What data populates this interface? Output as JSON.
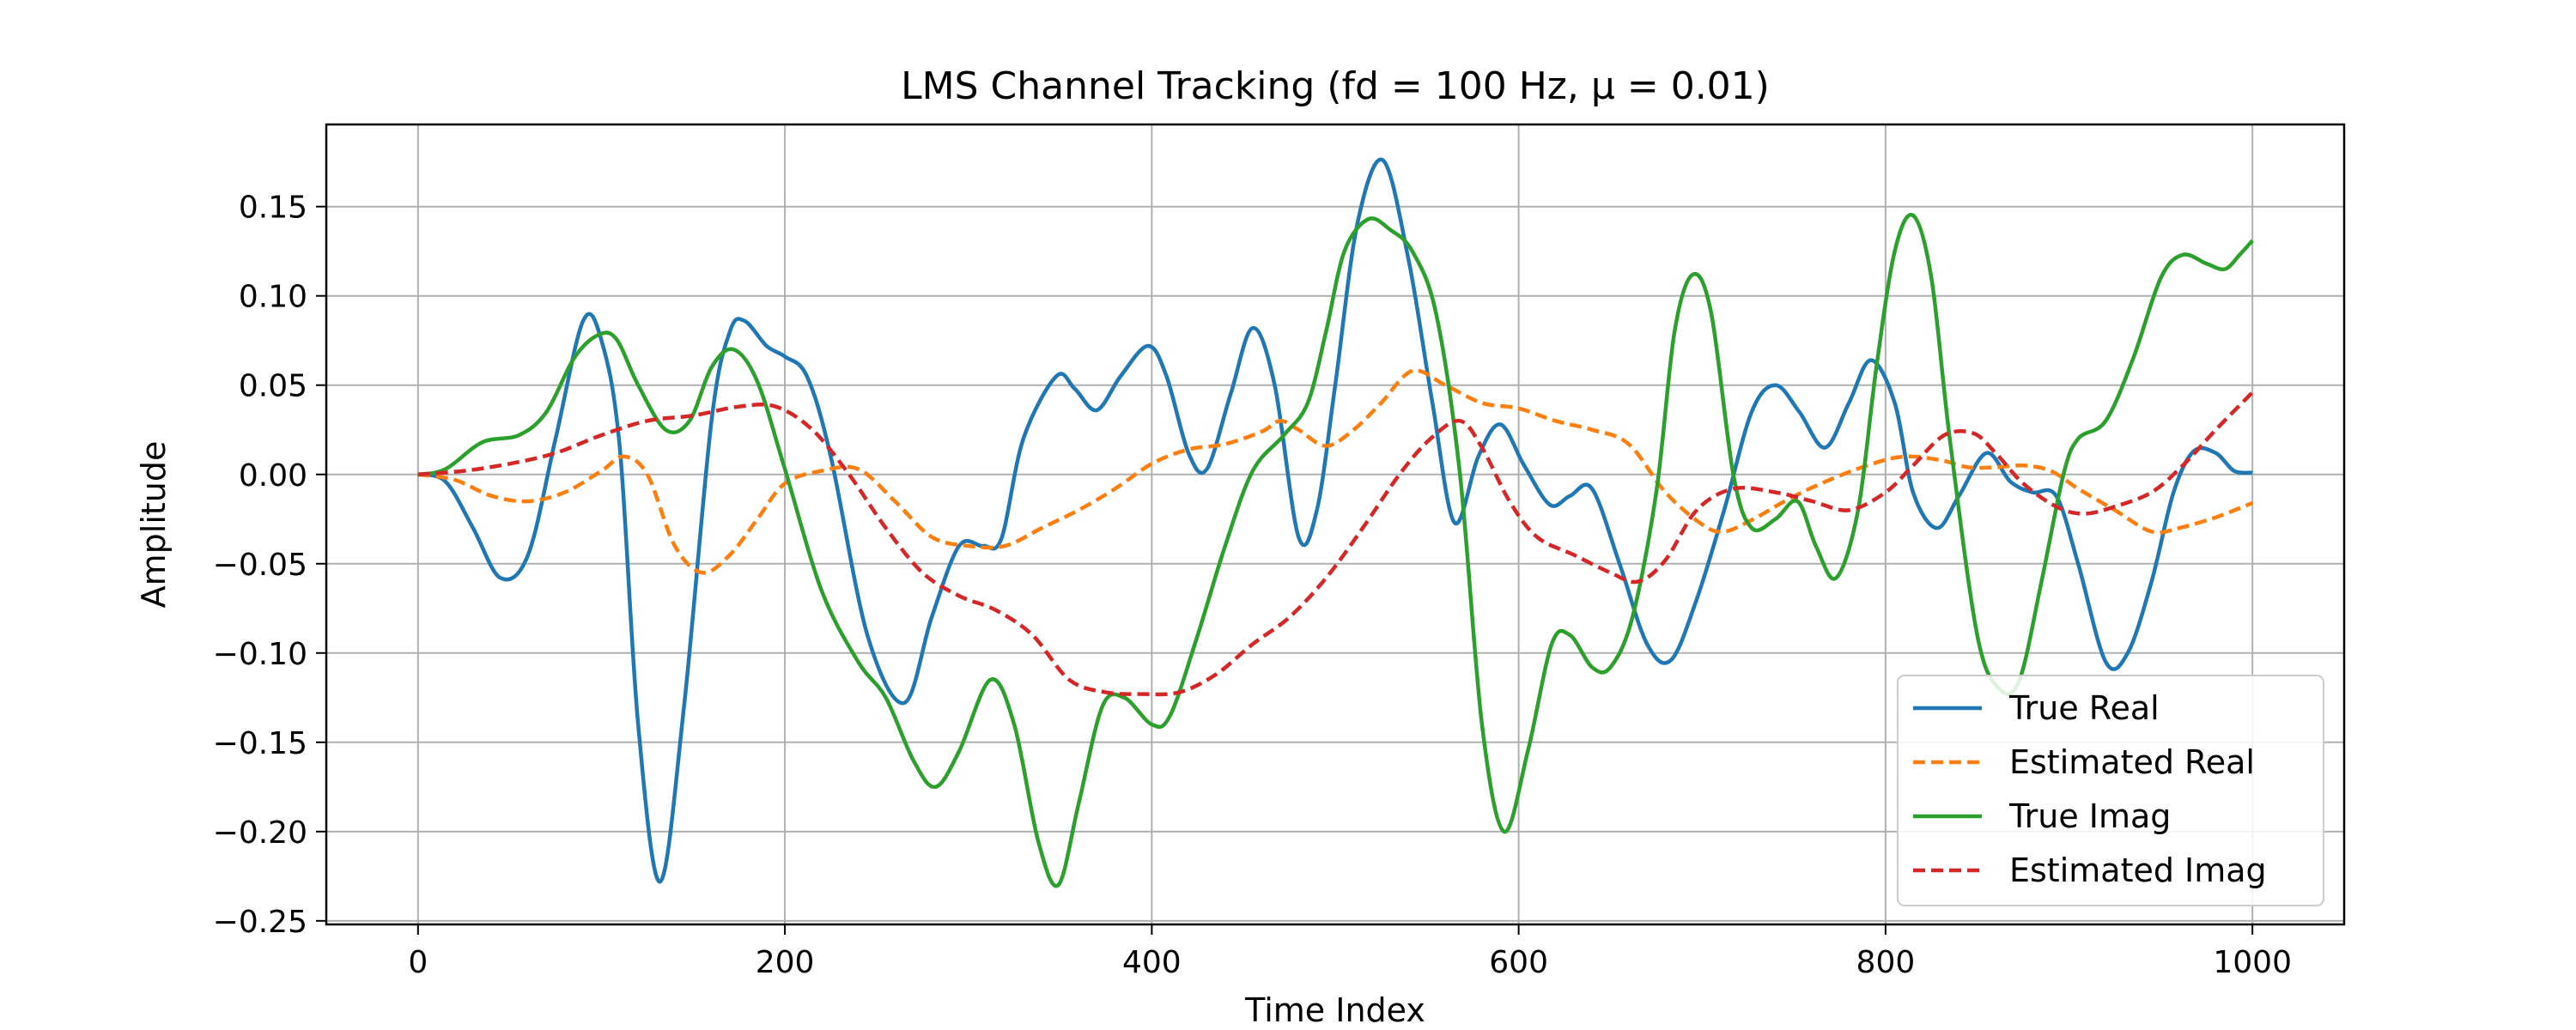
{
  "chart_data": {
    "type": "line",
    "title": "LMS Channel Tracking (fd = 100 Hz, μ = 0.01)",
    "xlabel": "Time Index",
    "ylabel": "Amplitude",
    "xlim": [
      -50,
      1050
    ],
    "ylim": [
      -0.252,
      0.196
    ],
    "xticks": [
      0,
      200,
      400,
      600,
      800,
      1000
    ],
    "xtick_labels": [
      "0",
      "200",
      "400",
      "600",
      "800",
      "1000"
    ],
    "yticks": [
      -0.25,
      -0.2,
      -0.15,
      -0.1,
      -0.05,
      0.0,
      0.05,
      0.1,
      0.15
    ],
    "ytick_labels": [
      "−0.25",
      "−0.20",
      "−0.15",
      "−0.10",
      "−0.05",
      "0.00",
      "0.05",
      "0.10",
      "0.15"
    ],
    "grid": true,
    "legend_position": "lower-right",
    "series": [
      {
        "name": "True Real",
        "color": "#1f77b4",
        "dash": "solid",
        "points": [
          [
            0,
            0
          ],
          [
            15,
            -0.004
          ],
          [
            30,
            -0.03
          ],
          [
            45,
            -0.058
          ],
          [
            60,
            -0.045
          ],
          [
            75,
            0.02
          ],
          [
            90,
            0.086
          ],
          [
            100,
            0.075
          ],
          [
            110,
            0.015
          ],
          [
            120,
            -0.14
          ],
          [
            132,
            -0.228
          ],
          [
            145,
            -0.13
          ],
          [
            160,
            0.03
          ],
          [
            170,
            0.08
          ],
          [
            178,
            0.086
          ],
          [
            190,
            0.072
          ],
          [
            200,
            0.066
          ],
          [
            212,
            0.055
          ],
          [
            225,
            0.01
          ],
          [
            245,
            -0.09
          ],
          [
            265,
            -0.128
          ],
          [
            280,
            -0.08
          ],
          [
            295,
            -0.04
          ],
          [
            308,
            -0.04
          ],
          [
            318,
            -0.036
          ],
          [
            330,
            0.02
          ],
          [
            348,
            0.055
          ],
          [
            358,
            0.048
          ],
          [
            370,
            0.036
          ],
          [
            383,
            0.055
          ],
          [
            398,
            0.072
          ],
          [
            408,
            0.055
          ],
          [
            420,
            0.012
          ],
          [
            430,
            0.003
          ],
          [
            443,
            0.045
          ],
          [
            455,
            0.082
          ],
          [
            467,
            0.05
          ],
          [
            480,
            -0.035
          ],
          [
            490,
            -0.02
          ],
          [
            500,
            0.05
          ],
          [
            512,
            0.14
          ],
          [
            526,
            0.176
          ],
          [
            540,
            0.12
          ],
          [
            553,
            0.04
          ],
          [
            565,
            -0.027
          ],
          [
            578,
            0.01
          ],
          [
            590,
            0.028
          ],
          [
            603,
            0.005
          ],
          [
            617,
            -0.017
          ],
          [
            628,
            -0.012
          ],
          [
            640,
            -0.008
          ],
          [
            655,
            -0.05
          ],
          [
            670,
            -0.095
          ],
          [
            683,
            -0.104
          ],
          [
            697,
            -0.07
          ],
          [
            712,
            -0.02
          ],
          [
            727,
            0.035
          ],
          [
            740,
            0.05
          ],
          [
            753,
            0.035
          ],
          [
            767,
            0.015
          ],
          [
            780,
            0.04
          ],
          [
            792,
            0.064
          ],
          [
            805,
            0.04
          ],
          [
            815,
            -0.01
          ],
          [
            828,
            -0.03
          ],
          [
            840,
            -0.012
          ],
          [
            855,
            0.012
          ],
          [
            868,
            -0.004
          ],
          [
            880,
            -0.01
          ],
          [
            893,
            -0.012
          ],
          [
            905,
            -0.05
          ],
          [
            920,
            -0.105
          ],
          [
            932,
            -0.1
          ],
          [
            945,
            -0.06
          ],
          [
            957,
            -0.01
          ],
          [
            968,
            0.013
          ],
          [
            980,
            0.012
          ],
          [
            990,
            0.002
          ],
          [
            1000,
            0.001
          ]
        ]
      },
      {
        "name": "Estimated Real",
        "color": "#ff7f0e",
        "dash": "dashed",
        "points": [
          [
            0,
            0
          ],
          [
            20,
            -0.003
          ],
          [
            40,
            -0.012
          ],
          [
            60,
            -0.015
          ],
          [
            80,
            -0.01
          ],
          [
            100,
            0.002
          ],
          [
            112,
            0.01
          ],
          [
            125,
            0.0
          ],
          [
            140,
            -0.04
          ],
          [
            155,
            -0.055
          ],
          [
            170,
            -0.045
          ],
          [
            185,
            -0.025
          ],
          [
            200,
            -0.005
          ],
          [
            220,
            0.002
          ],
          [
            240,
            0.003
          ],
          [
            260,
            -0.015
          ],
          [
            280,
            -0.035
          ],
          [
            300,
            -0.04
          ],
          [
            320,
            -0.04
          ],
          [
            340,
            -0.03
          ],
          [
            360,
            -0.02
          ],
          [
            380,
            -0.008
          ],
          [
            400,
            0.006
          ],
          [
            420,
            0.014
          ],
          [
            440,
            0.017
          ],
          [
            460,
            0.024
          ],
          [
            470,
            0.03
          ],
          [
            480,
            0.025
          ],
          [
            495,
            0.016
          ],
          [
            510,
            0.025
          ],
          [
            525,
            0.04
          ],
          [
            542,
            0.058
          ],
          [
            560,
            0.05
          ],
          [
            580,
            0.04
          ],
          [
            600,
            0.037
          ],
          [
            620,
            0.03
          ],
          [
            640,
            0.025
          ],
          [
            660,
            0.017
          ],
          [
            680,
            -0.01
          ],
          [
            700,
            -0.028
          ],
          [
            712,
            -0.032
          ],
          [
            728,
            -0.025
          ],
          [
            745,
            -0.015
          ],
          [
            765,
            -0.005
          ],
          [
            790,
            0.005
          ],
          [
            810,
            0.01
          ],
          [
            830,
            0.008
          ],
          [
            845,
            0.004
          ],
          [
            860,
            0.004
          ],
          [
            875,
            0.005
          ],
          [
            890,
            0.002
          ],
          [
            905,
            -0.008
          ],
          [
            925,
            -0.02
          ],
          [
            945,
            -0.032
          ],
          [
            960,
            -0.03
          ],
          [
            980,
            -0.024
          ],
          [
            1000,
            -0.016
          ]
        ]
      },
      {
        "name": "True Imag",
        "color": "#2ca02c",
        "dash": "solid",
        "points": [
          [
            0,
            0
          ],
          [
            15,
            0.003
          ],
          [
            35,
            0.018
          ],
          [
            55,
            0.022
          ],
          [
            70,
            0.035
          ],
          [
            85,
            0.065
          ],
          [
            98,
            0.078
          ],
          [
            108,
            0.076
          ],
          [
            120,
            0.05
          ],
          [
            135,
            0.025
          ],
          [
            148,
            0.03
          ],
          [
            160,
            0.06
          ],
          [
            172,
            0.07
          ],
          [
            185,
            0.052
          ],
          [
            200,
            0.003
          ],
          [
            220,
            -0.065
          ],
          [
            240,
            -0.105
          ],
          [
            255,
            -0.125
          ],
          [
            270,
            -0.16
          ],
          [
            282,
            -0.175
          ],
          [
            295,
            -0.155
          ],
          [
            312,
            -0.115
          ],
          [
            325,
            -0.14
          ],
          [
            338,
            -0.205
          ],
          [
            349,
            -0.23
          ],
          [
            360,
            -0.185
          ],
          [
            373,
            -0.13
          ],
          [
            385,
            -0.125
          ],
          [
            400,
            -0.14
          ],
          [
            410,
            -0.135
          ],
          [
            425,
            -0.09
          ],
          [
            440,
            -0.04
          ],
          [
            455,
            0.002
          ],
          [
            472,
            0.022
          ],
          [
            485,
            0.04
          ],
          [
            495,
            0.08
          ],
          [
            505,
            0.125
          ],
          [
            518,
            0.143
          ],
          [
            530,
            0.137
          ],
          [
            542,
            0.125
          ],
          [
            555,
            0.09
          ],
          [
            568,
            0.0
          ],
          [
            580,
            -0.14
          ],
          [
            592,
            -0.2
          ],
          [
            605,
            -0.155
          ],
          [
            618,
            -0.095
          ],
          [
            628,
            -0.09
          ],
          [
            640,
            -0.108
          ],
          [
            650,
            -0.108
          ],
          [
            662,
            -0.08
          ],
          [
            675,
            -0.01
          ],
          [
            685,
            0.08
          ],
          [
            695,
            0.112
          ],
          [
            705,
            0.09
          ],
          [
            717,
            0.0
          ],
          [
            727,
            -0.03
          ],
          [
            740,
            -0.025
          ],
          [
            752,
            -0.015
          ],
          [
            762,
            -0.04
          ],
          [
            773,
            -0.058
          ],
          [
            785,
            -0.02
          ],
          [
            795,
            0.06
          ],
          [
            805,
            0.125
          ],
          [
            815,
            0.145
          ],
          [
            825,
            0.11
          ],
          [
            835,
            0.02
          ],
          [
            850,
            -0.09
          ],
          [
            862,
            -0.12
          ],
          [
            873,
            -0.115
          ],
          [
            885,
            -0.06
          ],
          [
            897,
            0.0
          ],
          [
            905,
            0.02
          ],
          [
            920,
            0.03
          ],
          [
            935,
            0.065
          ],
          [
            950,
            0.11
          ],
          [
            962,
            0.123
          ],
          [
            975,
            0.118
          ],
          [
            985,
            0.115
          ],
          [
            993,
            0.123
          ],
          [
            1000,
            0.131
          ]
        ]
      },
      {
        "name": "Estimated Imag",
        "color": "#d62728",
        "dash": "dashed",
        "points": [
          [
            0,
            0
          ],
          [
            25,
            0.002
          ],
          [
            50,
            0.006
          ],
          [
            75,
            0.012
          ],
          [
            100,
            0.022
          ],
          [
            125,
            0.03
          ],
          [
            150,
            0.033
          ],
          [
            175,
            0.038
          ],
          [
            195,
            0.038
          ],
          [
            215,
            0.025
          ],
          [
            235,
            0.0
          ],
          [
            255,
            -0.03
          ],
          [
            275,
            -0.055
          ],
          [
            295,
            -0.068
          ],
          [
            315,
            -0.076
          ],
          [
            335,
            -0.09
          ],
          [
            355,
            -0.115
          ],
          [
            375,
            -0.122
          ],
          [
            395,
            -0.123
          ],
          [
            415,
            -0.122
          ],
          [
            435,
            -0.112
          ],
          [
            455,
            -0.095
          ],
          [
            475,
            -0.08
          ],
          [
            495,
            -0.058
          ],
          [
            515,
            -0.03
          ],
          [
            535,
            0.0
          ],
          [
            552,
            0.02
          ],
          [
            568,
            0.03
          ],
          [
            580,
            0.015
          ],
          [
            595,
            -0.015
          ],
          [
            610,
            -0.035
          ],
          [
            630,
            -0.045
          ],
          [
            650,
            -0.055
          ],
          [
            665,
            -0.06
          ],
          [
            680,
            -0.048
          ],
          [
            697,
            -0.02
          ],
          [
            717,
            -0.008
          ],
          [
            740,
            -0.01
          ],
          [
            760,
            -0.015
          ],
          [
            780,
            -0.02
          ],
          [
            800,
            -0.01
          ],
          [
            815,
            0.005
          ],
          [
            832,
            0.022
          ],
          [
            848,
            0.023
          ],
          [
            860,
            0.012
          ],
          [
            875,
            -0.005
          ],
          [
            893,
            -0.018
          ],
          [
            908,
            -0.022
          ],
          [
            925,
            -0.018
          ],
          [
            945,
            -0.01
          ],
          [
            962,
            0.005
          ],
          [
            980,
            0.025
          ],
          [
            1000,
            0.046
          ]
        ]
      }
    ]
  }
}
